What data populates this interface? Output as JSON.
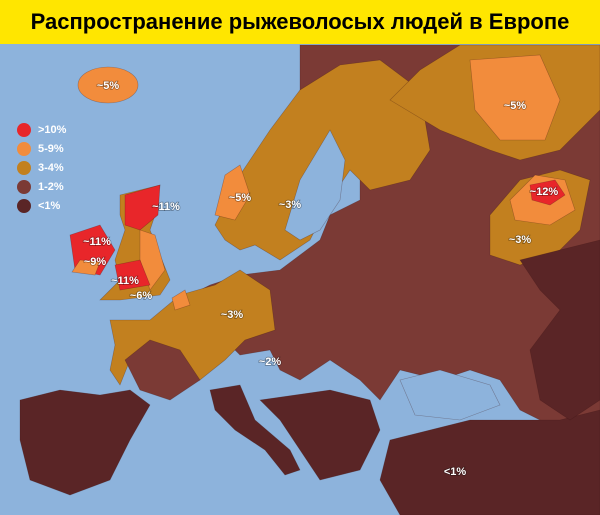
{
  "title": "Распространение рыжеволосых людей в Европе",
  "legend": [
    {
      "label": ">10%",
      "color": "#e8262a"
    },
    {
      "label": "5-9%",
      "color": "#f28c3c"
    },
    {
      "label": "3-4%",
      "color": "#c2801f"
    },
    {
      "label": "1-2%",
      "color": "#7b3a35"
    },
    {
      "label": "<1%",
      "color": "#5a2526"
    }
  ],
  "map_labels": [
    "~5%",
    "~5%",
    "~12%",
    "~3%",
    "~11%",
    "~11%",
    "~9%",
    "~11%",
    "~6%",
    "~5%",
    "~3%",
    "~3%",
    "~2%",
    "<1%"
  ]
}
